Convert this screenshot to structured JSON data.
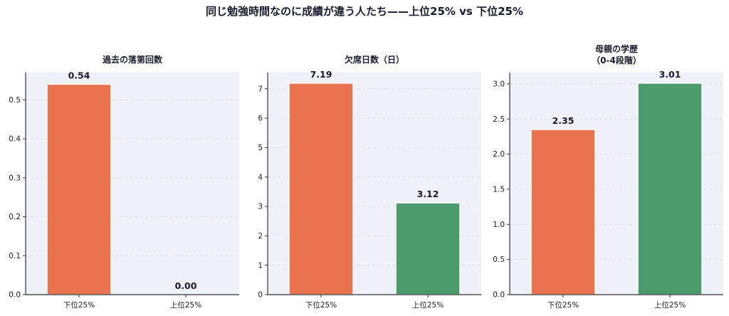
{
  "suptitle": "同じ勉強時間なのに成績が違う人たち——上位25% vs 下位25%",
  "colors": {
    "bottom": "#E8734E",
    "top": "#4A9A6C",
    "panel_bg": "#EEF2F8",
    "grid": "#d5dbe5",
    "axis": "#333333"
  },
  "chart_data": [
    {
      "type": "bar",
      "title": "過去の落第回数",
      "categories": [
        "下位25%",
        "上位25%"
      ],
      "values": [
        0.54,
        0.0
      ],
      "value_labels": [
        "0.54",
        "0.00"
      ],
      "ylim": [
        0,
        0.57
      ],
      "yticks": [
        0,
        0.1,
        0.2,
        0.3,
        0.4,
        0.5
      ],
      "ytick_labels": [
        "0.0",
        "0.1",
        "0.2",
        "0.3",
        "0.4",
        "0.5"
      ],
      "xlabel": "",
      "ylabel": "",
      "grid": "y-dashed"
    },
    {
      "type": "bar",
      "title": "欠席日数（日）",
      "categories": [
        "下位25%",
        "上位25%"
      ],
      "values": [
        7.19,
        3.12
      ],
      "value_labels": [
        "7.19",
        "3.12"
      ],
      "ylim": [
        0,
        7.55
      ],
      "yticks": [
        0,
        1,
        2,
        3,
        4,
        5,
        6,
        7
      ],
      "ytick_labels": [
        "0",
        "1",
        "2",
        "3",
        "4",
        "5",
        "6",
        "7"
      ],
      "xlabel": "",
      "ylabel": "",
      "grid": "y-dashed"
    },
    {
      "type": "bar",
      "title": "母親の学歴\n（0-4段階）",
      "categories": [
        "下位25%",
        "上位25%"
      ],
      "values": [
        2.35,
        3.01
      ],
      "value_labels": [
        "2.35",
        "3.01"
      ],
      "ylim": [
        0,
        3.16
      ],
      "yticks": [
        0,
        0.5,
        1.0,
        1.5,
        2.0,
        2.5,
        3.0
      ],
      "ytick_labels": [
        "0.0",
        "0.5",
        "1.0",
        "1.5",
        "2.0",
        "2.5",
        "3.0"
      ],
      "xlabel": "",
      "ylabel": "",
      "grid": "y-dashed"
    }
  ]
}
